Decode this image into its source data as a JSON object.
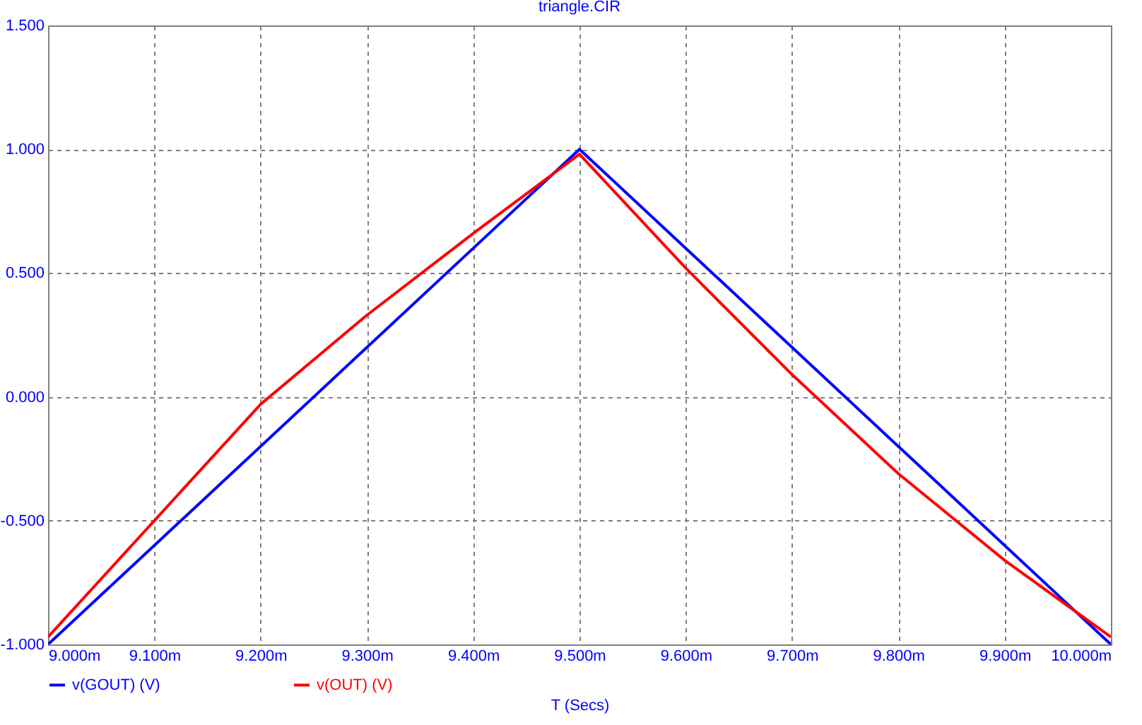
{
  "chart_data": {
    "type": "line",
    "title": "triangle.CIR",
    "xlabel": "T (Secs)",
    "xlim": [
      9,
      10
    ],
    "xticks": [
      {
        "value": 9,
        "label": "9.000m"
      },
      {
        "value": 9.1,
        "label": "9.100m"
      },
      {
        "value": 9.2,
        "label": "9.200m"
      },
      {
        "value": 9.3,
        "label": "9.300m"
      },
      {
        "value": 9.4,
        "label": "9.400m"
      },
      {
        "value": 9.5,
        "label": "9.500m"
      },
      {
        "value": 9.6,
        "label": "9.600m"
      },
      {
        "value": 9.7,
        "label": "9.700m"
      },
      {
        "value": 9.8,
        "label": "9.800m"
      },
      {
        "value": 9.9,
        "label": "9.900m"
      },
      {
        "value": 10,
        "label": "10.000m"
      }
    ],
    "ylim": [
      -1,
      1.5
    ],
    "yticks": [
      {
        "value": -1,
        "label": "-1.000"
      },
      {
        "value": -0.5,
        "label": "-0.500"
      },
      {
        "value": 0,
        "label": "0.000"
      },
      {
        "value": 0.5,
        "label": "0.500"
      },
      {
        "value": 1,
        "label": "1.000"
      },
      {
        "value": 1.5,
        "label": "1.500"
      }
    ],
    "grid": true,
    "legend": "bottom left",
    "marker": "none",
    "line_style": "solid",
    "series": [
      {
        "name": "v(GOUT) (V)",
        "color": "#0000ff",
        "x": [
          9,
          9.5,
          10
        ],
        "values": [
          -1,
          1,
          -1
        ]
      },
      {
        "name": "v(OUT) (V)",
        "color": "#ff0000",
        "x": [
          9,
          9.1,
          9.2,
          9.3,
          9.4,
          9.5,
          9.6,
          9.7,
          9.8,
          9.9,
          10
        ],
        "values": [
          -0.97,
          -0.5,
          -0.03,
          0.33,
          0.66,
          0.98,
          0.52,
          0.09,
          -0.31,
          -0.66,
          -0.97
        ]
      }
    ]
  }
}
